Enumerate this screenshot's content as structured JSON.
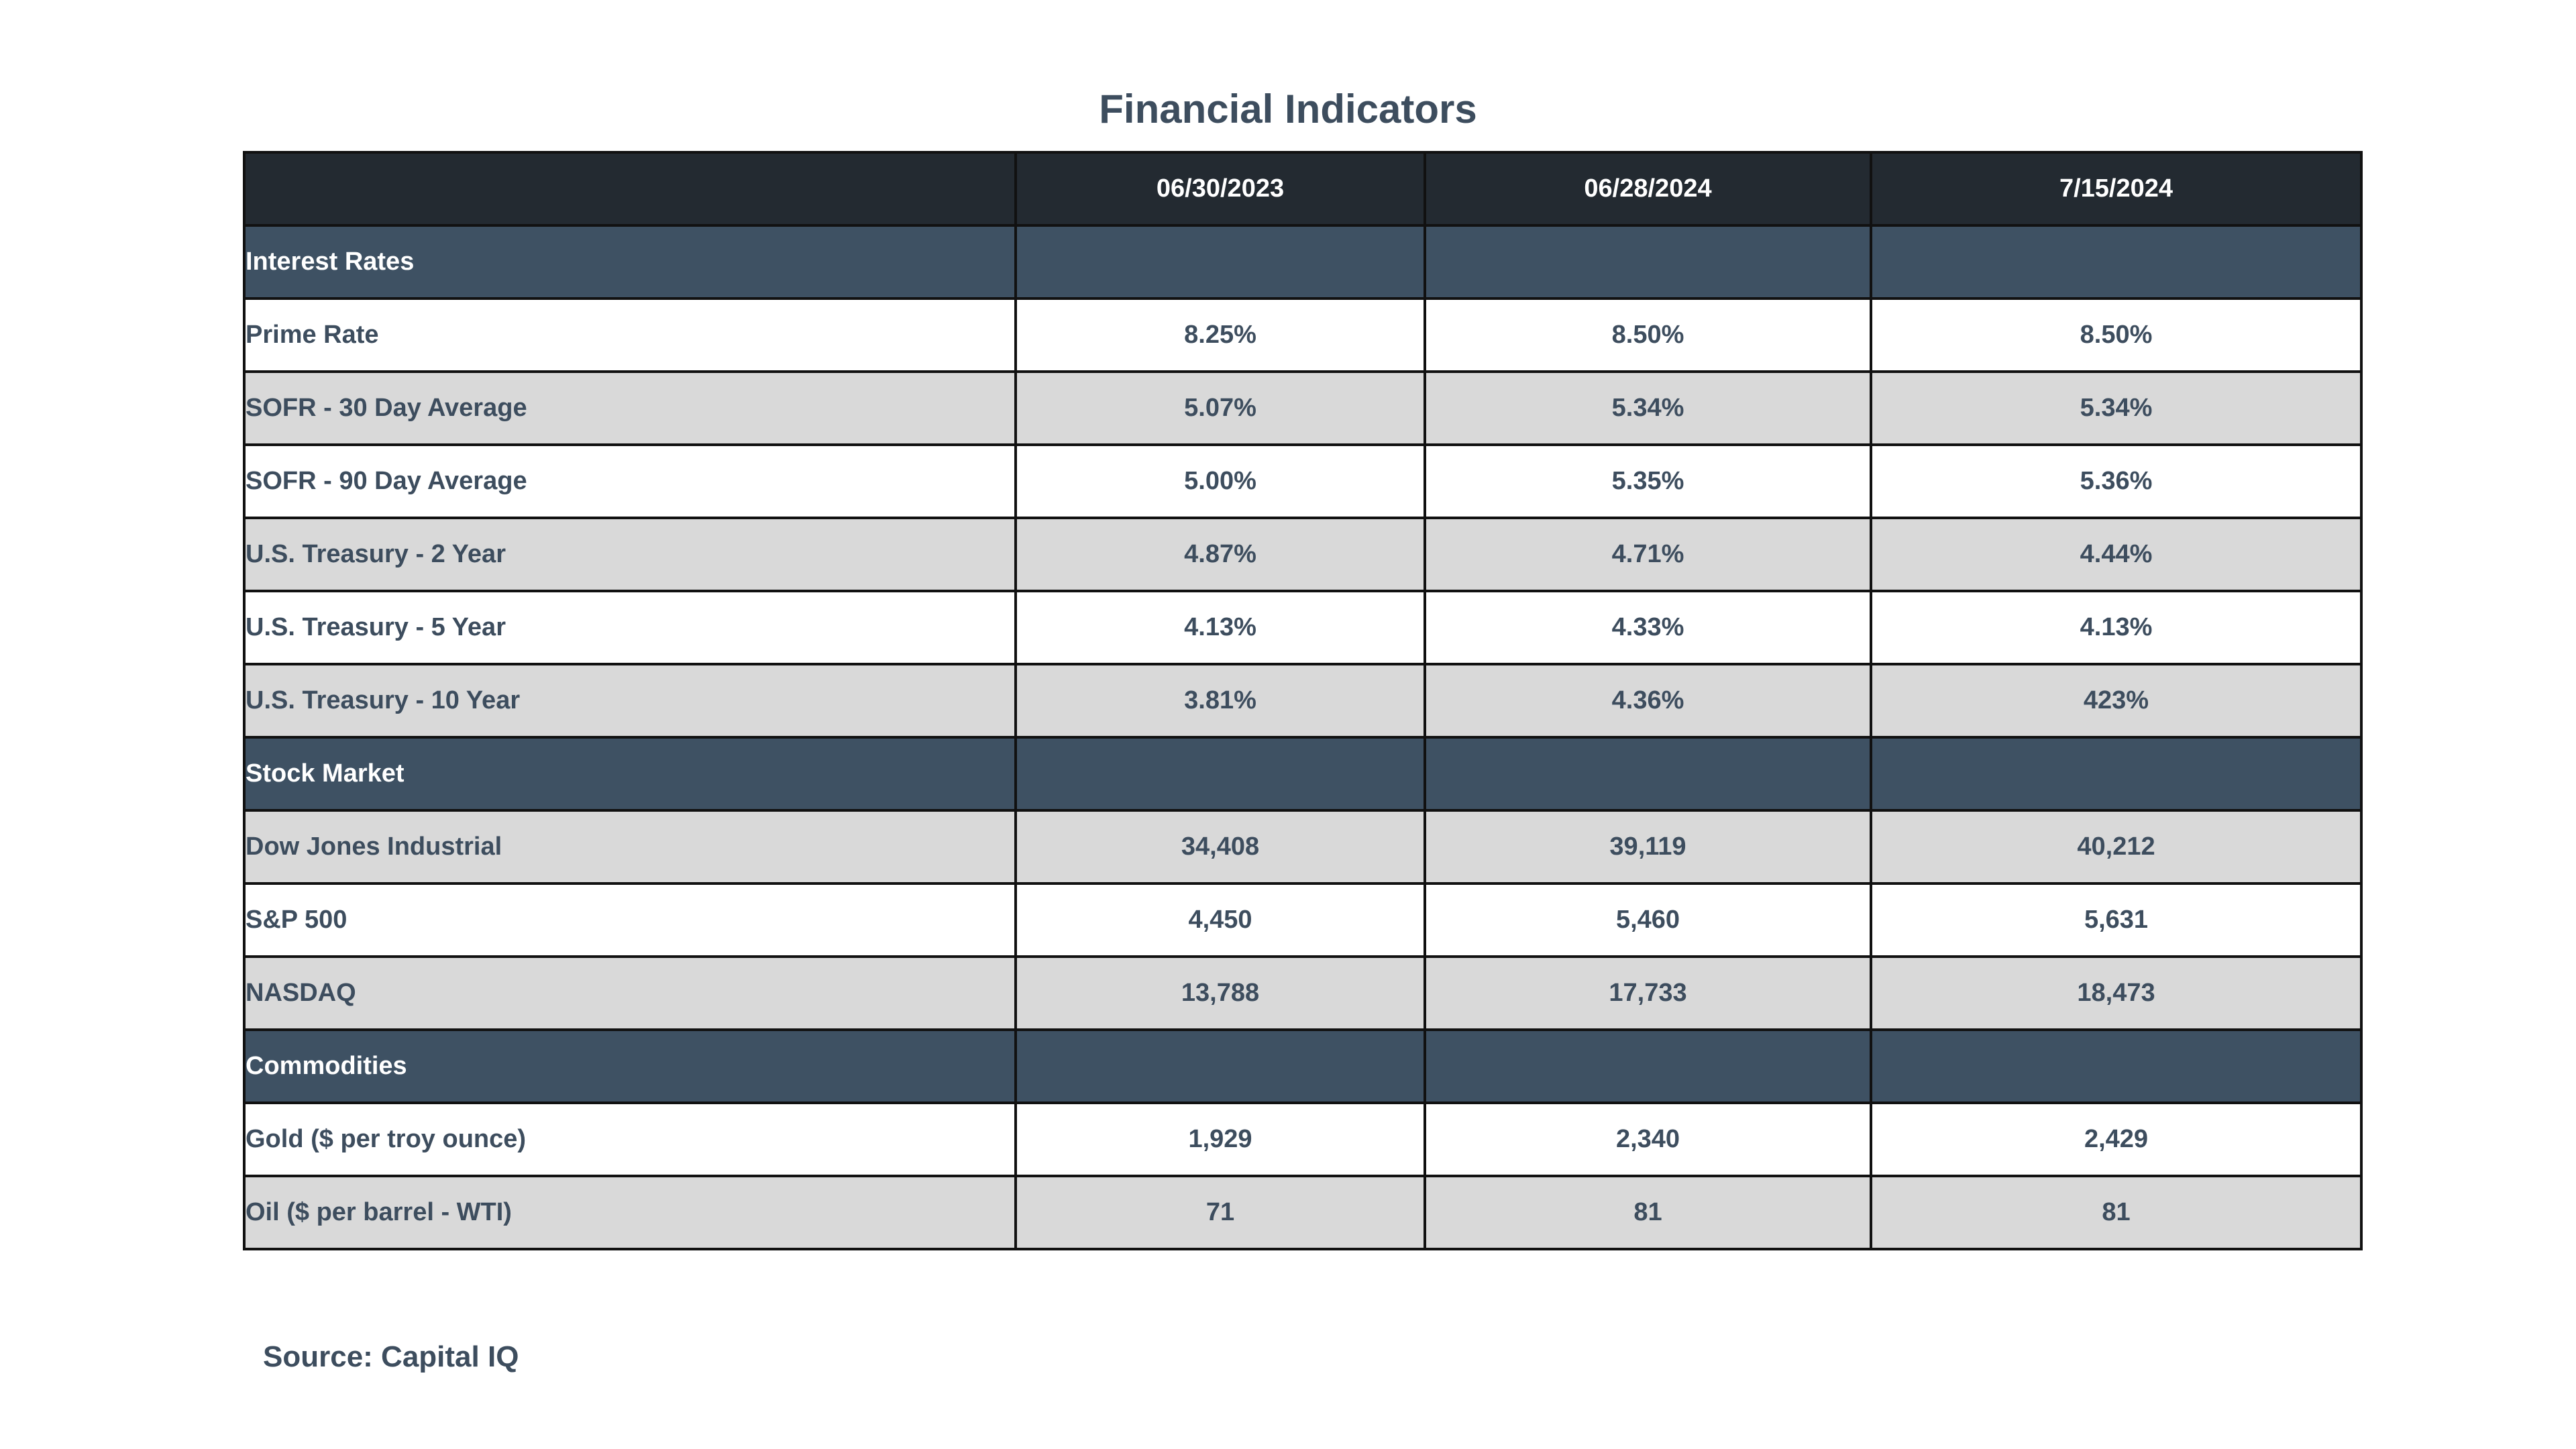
{
  "title": "Financial Indicators",
  "table": {
    "header": [
      "",
      "06/30/2023",
      "06/28/2024",
      "7/15/2024"
    ],
    "sections": [
      {
        "name": "Interest Rates",
        "rows": [
          {
            "label": "Prime Rate",
            "values": [
              "8.25%",
              "8.50%",
              "8.50%"
            ]
          },
          {
            "label": "SOFR - 30 Day Average",
            "values": [
              "5.07%",
              "5.34%",
              "5.34%"
            ]
          },
          {
            "label": "SOFR - 90 Day Average",
            "values": [
              "5.00%",
              "5.35%",
              "5.36%"
            ]
          },
          {
            "label": "U.S. Treasury - 2 Year",
            "values": [
              "4.87%",
              "4.71%",
              "4.44%"
            ]
          },
          {
            "label": "U.S. Treasury - 5 Year",
            "values": [
              "4.13%",
              "4.33%",
              "4.13%"
            ]
          },
          {
            "label": "U.S. Treasury - 10 Year",
            "values": [
              "3.81%",
              "4.36%",
              "423%"
            ]
          }
        ]
      },
      {
        "name": "Stock Market",
        "rows": [
          {
            "label": "Dow Jones Industrial",
            "values": [
              "34,408",
              "39,119",
              "40,212"
            ]
          },
          {
            "label": "S&P 500",
            "values": [
              "4,450",
              "5,460",
              "5,631"
            ]
          },
          {
            "label": "NASDAQ",
            "values": [
              "13,788",
              "17,733",
              "18,473"
            ]
          }
        ]
      },
      {
        "name": "Commodities",
        "rows": [
          {
            "label": "Gold ($ per troy ounce)",
            "values": [
              "1,929",
              "2,340",
              "2,429"
            ]
          },
          {
            "label": "Oil ($ per barrel - WTI)",
            "values": [
              "71",
              "81",
              "81"
            ]
          }
        ]
      }
    ]
  },
  "source": "Source: Capital IQ",
  "colors": {
    "header_bg": "#232a31",
    "section_bg": "#3e5163",
    "row_gray": "#d9d9d9",
    "row_white": "#ffffff",
    "text": "#3d4d5e"
  }
}
